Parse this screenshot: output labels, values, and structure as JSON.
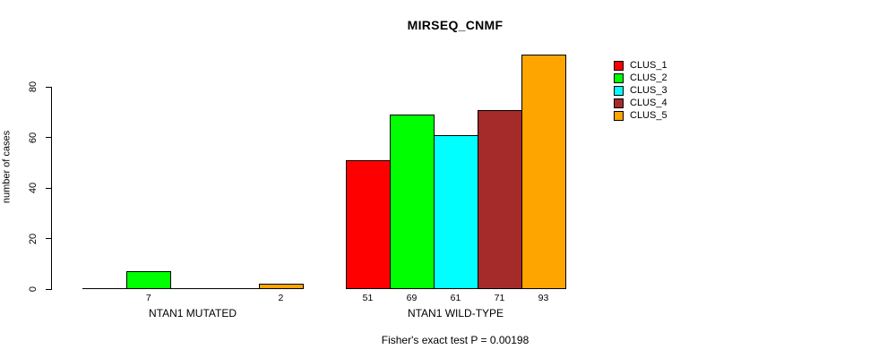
{
  "chart_data": {
    "type": "bar",
    "title": "MIRSEQ_CNMF",
    "ylabel": "number of cases",
    "xlabel": "",
    "yticks": [
      0,
      20,
      40,
      60,
      80
    ],
    "ylim": [
      0,
      97
    ],
    "grid": false,
    "legend_position": "right",
    "bar_border_color": "#000000",
    "categories": [
      "NTAN1 MUTATED",
      "NTAN1 WILD-TYPE"
    ],
    "series": [
      {
        "name": "CLUS_1",
        "color": "#FF0000",
        "values": [
          0,
          51
        ]
      },
      {
        "name": "CLUS_2",
        "color": "#00FF00",
        "values": [
          7,
          69
        ]
      },
      {
        "name": "CLUS_3",
        "color": "#00FFFF",
        "values": [
          0,
          61
        ]
      },
      {
        "name": "CLUS_4",
        "color": "#A52A2A",
        "values": [
          0,
          71
        ]
      },
      {
        "name": "CLUS_5",
        "color": "#FFA500",
        "values": [
          2,
          93
        ]
      }
    ],
    "value_labels": "shown under each nonzero bar",
    "annotation": "Fisher's exact test P = 0.00198"
  }
}
